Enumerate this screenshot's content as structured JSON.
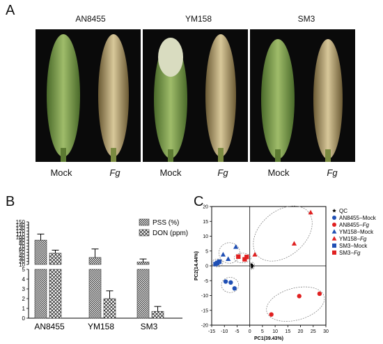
{
  "panelA": {
    "letter": "A",
    "cultivars": [
      "AN8455",
      "YM158",
      "SM3"
    ],
    "treatments": [
      "Mock",
      "Fg",
      "Mock",
      "Fg",
      "Mock",
      "Fg"
    ]
  },
  "panelB": {
    "letter": "B"
  },
  "panelC": {
    "letter": "C"
  },
  "chart_data": [
    {
      "type": "bar",
      "categories": [
        "AN8455",
        "YM158",
        "SM3"
      ],
      "series": [
        {
          "name": "PSS (%)",
          "values": [
            90,
            33,
            18
          ],
          "errors": [
            20,
            28,
            10
          ]
        },
        {
          "name": "DON (ppm)",
          "values": [
            47,
            2.0,
            0.7
          ],
          "errors": [
            10,
            0.8,
            0.5
          ]
        }
      ],
      "yticks_upper": [
        10,
        20,
        30,
        40,
        50,
        60,
        70,
        80,
        90,
        100,
        110,
        120,
        130,
        140,
        150
      ],
      "yticks_lower": [
        0,
        1,
        2,
        3,
        4,
        5
      ],
      "ylim_upper": [
        10,
        150
      ],
      "ylim_lower": [
        0,
        5
      ],
      "legend_position": "top-right"
    },
    {
      "type": "scatter",
      "xlabel": "PC1(39.43%)",
      "ylabel": "PC2(14.44%)",
      "xlim": [
        -15,
        30
      ],
      "ylim": [
        -20,
        20
      ],
      "xticks": [
        -15,
        -10,
        -5,
        0,
        5,
        10,
        15,
        20,
        25,
        30
      ],
      "yticks": [
        -20,
        -15,
        -10,
        -5,
        0,
        5,
        10,
        15,
        20
      ],
      "legend_position": "right",
      "series": [
        {
          "name": "QC",
          "marker": "star",
          "color": "#000000",
          "points": [
            [
              0.7,
              0.5
            ],
            [
              0.9,
              0.2
            ],
            [
              1.0,
              -0.2
            ],
            [
              0.8,
              -0.5
            ],
            [
              1.1,
              0.0
            ]
          ]
        },
        {
          "name": "AN8455−Mock",
          "marker": "circle",
          "color": "#1f4fb4",
          "points": [
            [
              -9.5,
              -5.3
            ],
            [
              -7.5,
              -5.6
            ],
            [
              -6.0,
              -7.6
            ]
          ]
        },
        {
          "name": "AN8455−Fg",
          "marker": "circle",
          "color": "#e02020",
          "points": [
            [
              8.5,
              -16.4
            ],
            [
              19.5,
              -10.2
            ],
            [
              27.5,
              -9.4
            ]
          ]
        },
        {
          "name": "YM158−Mock",
          "marker": "triangle",
          "color": "#1f4fb4",
          "points": [
            [
              -10.5,
              3.8
            ],
            [
              -8.5,
              2.3
            ],
            [
              -5.5,
              6.4
            ]
          ]
        },
        {
          "name": "YM158−Fg",
          "marker": "triangle",
          "color": "#e02020",
          "points": [
            [
              2.0,
              3.8
            ],
            [
              17.5,
              7.5
            ],
            [
              24.0,
              18.0
            ]
          ]
        },
        {
          "name": "SM3−Mock",
          "marker": "square",
          "color": "#1f4fb4",
          "points": [
            [
              -13.5,
              0.6
            ],
            [
              -12.8,
              1.0
            ],
            [
              -12.0,
              1.4
            ]
          ]
        },
        {
          "name": "SM3−Fg",
          "marker": "square",
          "color": "#e02020",
          "points": [
            [
              -4.5,
              3.1
            ],
            [
              -2.0,
              2.2
            ],
            [
              -1.2,
              3.0
            ]
          ]
        }
      ]
    }
  ]
}
